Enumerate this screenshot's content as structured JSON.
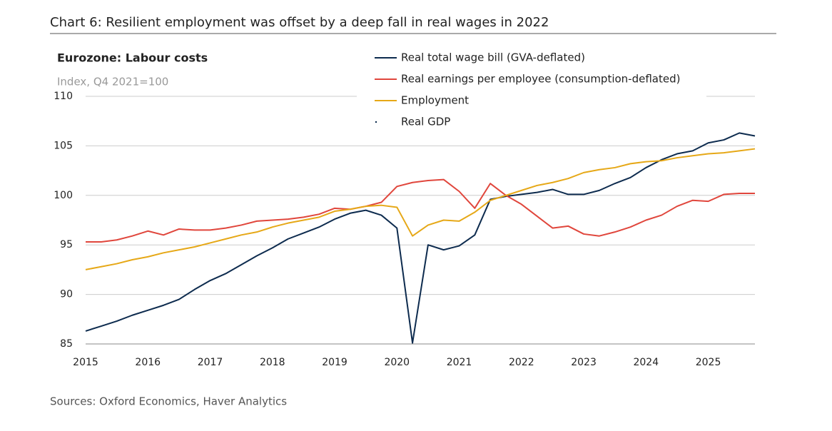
{
  "chart_data": {
    "type": "line",
    "title": "Chart 6: Resilient employment was offset by a deep fall in real wages in 2022",
    "subtitle": "Eurozone: Labour costs",
    "y_label": "Index, Q4 2021=100",
    "source": "Sources: Oxford Economics, Haver Analytics",
    "x": [
      2015,
      2015.25,
      2015.5,
      2015.75,
      2016,
      2016.25,
      2016.5,
      2016.75,
      2017,
      2017.25,
      2017.5,
      2017.75,
      2018,
      2018.25,
      2018.5,
      2018.75,
      2019,
      2019.25,
      2019.5,
      2019.75,
      2020,
      2020.25,
      2020.5,
      2020.75,
      2021,
      2021.25,
      2021.5,
      2021.75,
      2022,
      2022.25,
      2022.5,
      2022.75,
      2023,
      2023.25,
      2023.5,
      2023.75,
      2024,
      2024.25,
      2024.5,
      2024.75,
      2025,
      2025.25,
      2025.5,
      2025.75
    ],
    "series": [
      {
        "name": "Real total wage bill (GVA-deflated)",
        "color": "#0d2b4e",
        "values": [
          86.3,
          86.8,
          87.3,
          87.9,
          88.4,
          88.9,
          89.5,
          90.5,
          91.4,
          92.1,
          93.0,
          93.9,
          94.7,
          95.6,
          96.2,
          96.8,
          97.6,
          98.2,
          98.5,
          98.0,
          96.7,
          85.1,
          95.0,
          94.5,
          94.9,
          96.0,
          99.6,
          99.9,
          100.1,
          100.3,
          100.6,
          100.1,
          100.1,
          100.5,
          101.2,
          101.8,
          102.8,
          103.6,
          104.2,
          104.5,
          105.3,
          105.6,
          106.3,
          106.0
        ]
      },
      {
        "name": "Real earnings per employee (consumption-deflated)",
        "color": "#e0463c",
        "values": [
          95.3,
          95.3,
          95.5,
          95.9,
          96.4,
          96.0,
          96.6,
          96.5,
          96.5,
          96.7,
          97.0,
          97.4,
          97.5,
          97.6,
          97.8,
          98.1,
          98.7,
          98.6,
          98.9,
          99.3,
          100.9,
          101.3,
          101.5,
          101.6,
          100.4,
          98.7,
          101.2,
          100.0,
          99.1,
          97.9,
          96.7,
          96.9,
          96.1,
          95.9,
          96.3,
          96.8,
          97.5,
          98.0,
          98.9,
          99.5,
          99.4,
          100.1,
          100.2,
          100.2
        ]
      },
      {
        "name": "Employment",
        "color": "#e6a817",
        "values": [
          92.5,
          92.8,
          93.1,
          93.5,
          93.8,
          94.2,
          94.5,
          94.8,
          95.2,
          95.6,
          96.0,
          96.3,
          96.8,
          97.2,
          97.5,
          97.8,
          98.4,
          98.6,
          98.9,
          99.0,
          98.8,
          95.9,
          97.0,
          97.5,
          97.4,
          98.3,
          99.5,
          100.0,
          100.5,
          101.0,
          101.3,
          101.7,
          102.3,
          102.6,
          102.8,
          103.2,
          103.4,
          103.5,
          103.8,
          104.0,
          104.2,
          104.3,
          104.5,
          104.7
        ]
      },
      {
        "name": "Real GDP",
        "color": "#0d2b4e"
      }
    ],
    "xlim": [
      2015,
      2025.75
    ],
    "xticks": [
      2015,
      2016,
      2017,
      2018,
      2019,
      2020,
      2021,
      2022,
      2023,
      2024,
      2025
    ],
    "ylim": [
      85,
      110
    ],
    "yticks": [
      85,
      90,
      95,
      100,
      105,
      110
    ],
    "grid": true
  }
}
